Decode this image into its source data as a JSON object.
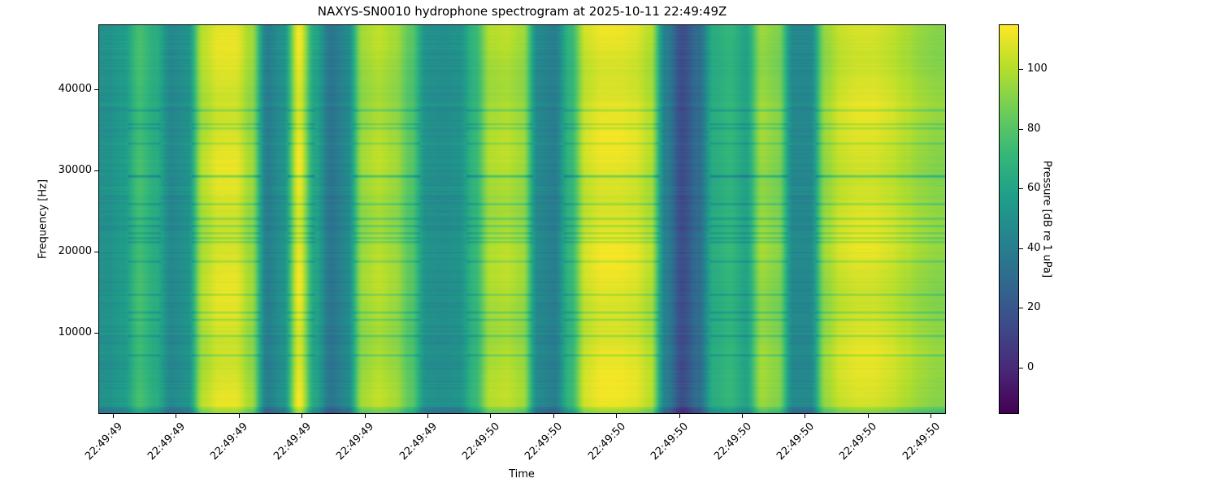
{
  "chart_data": {
    "type": "heatmap",
    "title": "NAXYS-SN0010 hydrophone spectrogram at 2025-10-11 22:49:49Z",
    "xlabel": "Time",
    "ylabel": "Frequency [Hz]",
    "colorbar_label": "Pressure [dB re 1 uPa]",
    "colormap": "viridis",
    "x_tick_labels": [
      "22:49:49",
      "22:49:49",
      "22:49:49",
      "22:49:49",
      "22:49:49",
      "22:49:49",
      "22:49:50",
      "22:49:50",
      "22:49:50",
      "22:49:50",
      "22:49:50",
      "22:49:50",
      "22:49:50",
      "22:49:50"
    ],
    "y_ticks": [
      10000,
      20000,
      30000,
      40000
    ],
    "ylim": [
      0,
      48000
    ],
    "colorbar_ticks": [
      0,
      20,
      40,
      60,
      80,
      100
    ],
    "clim": [
      -15.5,
      115
    ],
    "column_levels_db": [
      50,
      55,
      75,
      65,
      45,
      50,
      100,
      108,
      108,
      95,
      40,
      50,
      110,
      60,
      35,
      45,
      95,
      100,
      95,
      80,
      50,
      48,
      50,
      70,
      98,
      100,
      95,
      45,
      40,
      70,
      105,
      110,
      110,
      108,
      100,
      40,
      15,
      30,
      65,
      70,
      60,
      95,
      90,
      45,
      45,
      95,
      105,
      108,
      108,
      105,
      100,
      95,
      92
    ],
    "grid": false
  }
}
